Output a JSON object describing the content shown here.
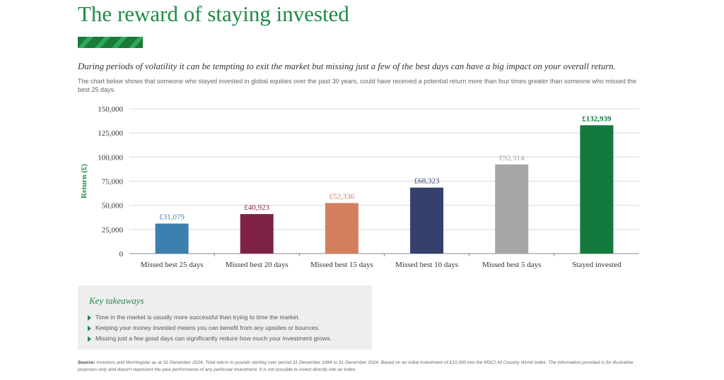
{
  "header": {
    "title": "The reward of staying invested",
    "subtitle": "During periods of volatility it can be tempting to exit the market but missing just a few of the best days can have a big impact on your overall return.",
    "intro": "The chart below shows that someone who stayed invested in global equities over the past 30 years, could have received a potential return more than four times greater than someone who missed the best 25 days."
  },
  "colors": {
    "brand_green": "#1f8a45",
    "accent_dark_green": "#1a7a3c",
    "accent_light_green": "#2fa85a"
  },
  "chart_data": {
    "type": "bar",
    "title": "",
    "xlabel": "",
    "ylabel": "Return (£)",
    "ylim": [
      0,
      150000
    ],
    "yticks": [
      "0",
      "25,000",
      "50,000",
      "75,000",
      "100,000",
      "125,000",
      "150,000"
    ],
    "ytick_values": [
      0,
      25000,
      50000,
      75000,
      100000,
      125000,
      150000
    ],
    "grid": true,
    "legend": "none",
    "categories": [
      "Missed best 25 days",
      "Missed best 20 days",
      "Missed best 15 days",
      "Missed best 10 days",
      "Missed best 5 days",
      "Stayed invested"
    ],
    "values": [
      31079,
      40923,
      52336,
      68323,
      92314,
      132939
    ],
    "data_labels": [
      "£31,079",
      "£40,923",
      "£52,336",
      "£68,323",
      "£92,314",
      "£132,939"
    ],
    "bar_colors": [
      "#3d7fae",
      "#7e2245",
      "#d4805f",
      "#36406d",
      "#a6a6a6",
      "#127a3c"
    ]
  },
  "takeaways": {
    "title": "Key takeaways",
    "items": [
      "Time in the market is usually more successful than trying to time the market.",
      "Keeping your money invested means you can benefit from any upsides or bounces.",
      "Missing just a few good days can significantly reduce how much your investment grows."
    ]
  },
  "source": {
    "label": "Source:",
    "text": " Investors and Morningstar as at 31 December 2024. Total return in pounds sterling over period 31 December 1994 to 31 December 2024. Based on an initial investment of £10,000 into the MSCI All Country World Index. The information provided is for illustrative purposes only and doesn't represent the past performance of any particular investment. It is not possible to invest directly into an index."
  }
}
